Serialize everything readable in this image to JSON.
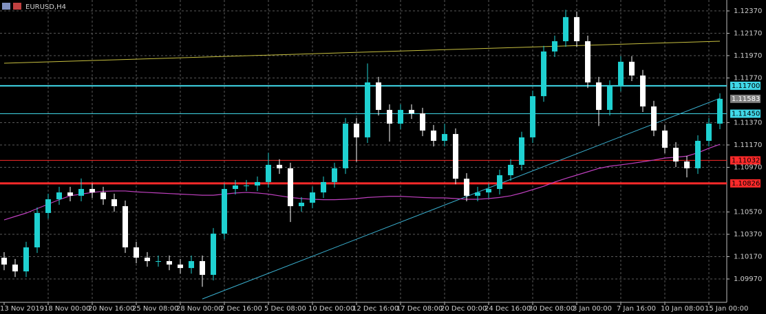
{
  "chart_data": {
    "type": "candlestick",
    "title": "EURUSD,H4",
    "categories": [
      "13 Nov 2019",
      null,
      null,
      null,
      "18 Nov 00:00",
      null,
      null,
      null,
      "20 Nov 16:00",
      null,
      null,
      null,
      "25 Nov 08:00",
      null,
      null,
      null,
      "28 Nov 00:00",
      null,
      null,
      null,
      "2 Dec 16:00",
      null,
      null,
      null,
      "5 Dec 08:00",
      null,
      null,
      null,
      "10 Dec 00:00",
      null,
      null,
      null,
      "12 Dec 16:00",
      null,
      null,
      null,
      "17 Dec 08:00",
      null,
      null,
      null,
      "20 Dec 00:00",
      null,
      null,
      null,
      "24 Dec 16:00",
      null,
      null,
      null,
      "30 Dec 08:00",
      null,
      null,
      null,
      "3 Jan 00:00",
      null,
      null,
      null,
      "7 Jan 16:00",
      null,
      null,
      null,
      "10 Jan 08:00",
      null,
      null,
      null,
      "15 Jan 00:00",
      null
    ],
    "open": [
      1.1016,
      1.10099,
      1.10038,
      1.10253,
      1.10561,
      1.10684,
      1.10745,
      1.10715,
      1.10776,
      1.10745,
      1.10684,
      1.10622,
      1.10253,
      1.10161,
      1.1013,
      1.1013,
      1.10099,
      1.10068,
      1.1013,
      1.10007,
      1.10376,
      1.10776,
      1.10807,
      1.10807,
      1.10838,
      1.10992,
      1.10961,
      1.10622,
      1.10653,
      1.10745,
      1.10838,
      1.10961,
      1.11361,
      1.11238,
      1.1173,
      1.11484,
      1.11361,
      1.11484,
      1.11453,
      1.11299,
      1.11207,
      1.11268,
      1.10868,
      1.10715,
      1.10745,
      1.10776,
      1.10899,
      1.10992,
      1.11238,
      1.11607,
      1.12007,
      1.12099,
      1.12315,
      1.12099,
      1.1173,
      1.11484,
      1.11699,
      1.11915,
      1.11792,
      1.11515,
      1.11299,
      1.11145,
      1.11022,
      1.10961,
      1.11207,
      1.11361
    ],
    "high": [
      1.1021,
      1.10149,
      1.10303,
      1.10611,
      1.10734,
      1.10795,
      1.10795,
      1.1087,
      1.10826,
      1.10795,
      1.10734,
      1.10672,
      1.10303,
      1.10211,
      1.1018,
      1.1018,
      1.10149,
      1.1018,
      1.1018,
      1.10426,
      1.10826,
      1.10857,
      1.10857,
      1.10888,
      1.111,
      1.11042,
      1.11011,
      1.10703,
      1.10795,
      1.10888,
      1.11011,
      1.11411,
      1.11411,
      1.119,
      1.1178,
      1.11534,
      1.11534,
      1.11534,
      1.11503,
      1.11349,
      1.1136,
      1.11318,
      1.10918,
      1.10795,
      1.10826,
      1.10949,
      1.11042,
      1.11288,
      1.11657,
      1.12057,
      1.12149,
      1.1238,
      1.12365,
      1.12149,
      1.1178,
      1.11749,
      1.11965,
      1.11965,
      1.11842,
      1.11565,
      1.11349,
      1.11195,
      1.11072,
      1.11257,
      1.11411,
      1.11633
    ],
    "low": [
      1.10049,
      1.09988,
      1.09988,
      1.10203,
      1.10511,
      1.10634,
      1.10665,
      1.10665,
      1.10695,
      1.10634,
      1.10572,
      1.10203,
      1.10111,
      1.1008,
      1.1008,
      1.10049,
      1.10018,
      1.10018,
      1.099,
      1.09957,
      1.10326,
      1.10726,
      1.10757,
      1.10757,
      1.10788,
      1.10911,
      1.1048,
      1.10572,
      1.10603,
      1.10695,
      1.10788,
      1.10911,
      1.1102,
      1.11188,
      1.11434,
      1.112,
      1.11311,
      1.11403,
      1.11249,
      1.11157,
      1.11157,
      1.10818,
      1.10665,
      1.10665,
      1.10695,
      1.10726,
      1.10849,
      1.10942,
      1.11188,
      1.11557,
      1.11957,
      1.12049,
      1.12049,
      1.1168,
      1.1134,
      1.11434,
      1.11649,
      1.11742,
      1.11465,
      1.11249,
      1.11095,
      1.10972,
      1.1088,
      1.10911,
      1.11157,
      1.11311
    ],
    "close": [
      1.10099,
      1.10038,
      1.10253,
      1.10561,
      1.10684,
      1.10745,
      1.10715,
      1.10776,
      1.10745,
      1.10684,
      1.10622,
      1.10253,
      1.10161,
      1.1013,
      1.1013,
      1.10099,
      1.10068,
      1.1013,
      1.10007,
      1.10376,
      1.10776,
      1.10807,
      1.10807,
      1.10838,
      1.10992,
      1.10961,
      1.10622,
      1.10653,
      1.10745,
      1.10838,
      1.10961,
      1.11361,
      1.11238,
      1.1173,
      1.11484,
      1.11361,
      1.11484,
      1.11453,
      1.11299,
      1.11207,
      1.11268,
      1.10868,
      1.10715,
      1.10745,
      1.10776,
      1.10899,
      1.10992,
      1.11238,
      1.11607,
      1.12007,
      1.12099,
      1.12315,
      1.12099,
      1.1173,
      1.11484,
      1.11699,
      1.11915,
      1.11792,
      1.11515,
      1.11299,
      1.11145,
      1.11022,
      1.10961,
      1.11207,
      1.11361,
      1.11583
    ],
    "up_color": "#1fd1d1",
    "down_color": "#ffffff",
    "ma": {
      "color": "#c040c0",
      "values": [
        1.10499,
        1.1053,
        1.1056,
        1.106,
        1.1064,
        1.1068,
        1.10715,
        1.1073,
        1.10745,
        1.10755,
        1.10758,
        1.10758,
        1.1075,
        1.10745,
        1.1074,
        1.10735,
        1.1073,
        1.10725,
        1.1072,
        1.1072,
        1.1073,
        1.1074,
        1.10745,
        1.1074,
        1.1073,
        1.10715,
        1.107,
        1.1069,
        1.10684,
        1.1068,
        1.1068,
        1.10684,
        1.1069,
        1.107,
        1.10705,
        1.1071,
        1.1071,
        1.10705,
        1.107,
        1.10696,
        1.10696,
        1.1069,
        1.10684,
        1.10684,
        1.1069,
        1.107,
        1.10715,
        1.1074,
        1.1077,
        1.108,
        1.10838,
        1.1087,
        1.109,
        1.1093,
        1.1096,
        1.1098,
        1.10992,
        1.11005,
        1.1102,
        1.11035,
        1.11053,
        1.1106,
        1.1107,
        1.111,
        1.1114,
        1.11176
      ]
    },
    "trendlines": [
      {
        "color": "#c8c040",
        "values": [
          1.11902,
          1.12099
        ]
      },
      {
        "color": "#3ab0d0",
        "values": [
          1.09791,
          1.11588
        ]
      }
    ],
    "levels": [
      {
        "value": 1.117,
        "label": "1.11700",
        "color": "#40d8e8"
      },
      {
        "value": 1.1145,
        "label": "1.11450",
        "color": "#40d8e8"
      },
      {
        "value": 1.11032,
        "color": "#ff2a2a"
      },
      {
        "value": 1.10826,
        "color": "#ff2a2a"
      }
    ],
    "current_price": 1.11583,
    "ylim": [
      1.09761,
      1.12468
    ],
    "yticks": [
      {
        "value": 1.0997,
        "label": "1.09970"
      },
      {
        "value": 1.1017,
        "label": "1.10170"
      },
      {
        "value": 1.1037,
        "label": "1.10370"
      },
      {
        "value": 1.1057,
        "label": "1.10570"
      },
      {
        "value": 1.1097,
        "label": "1.10970"
      },
      {
        "value": 1.1117,
        "label": "1.11170"
      },
      {
        "value": 1.1137,
        "label": "1.11370"
      },
      {
        "value": 1.1177,
        "label": "1.11770"
      },
      {
        "value": 1.1197,
        "label": "1.11970"
      },
      {
        "value": 1.1217,
        "label": "1.12170"
      },
      {
        "value": 1.1237,
        "label": "1.12370"
      }
    ],
    "grid": true
  }
}
